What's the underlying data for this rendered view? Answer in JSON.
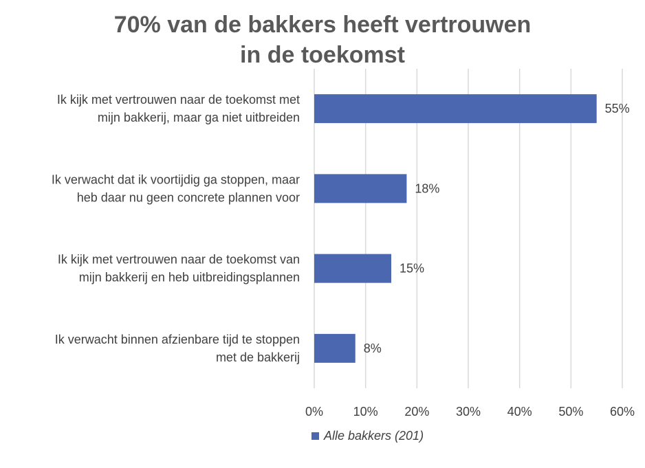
{
  "chart_data": {
    "type": "bar",
    "orientation": "horizontal",
    "title_lines": [
      "70% van de bakkers heeft vertrouwen",
      "in de toekomst"
    ],
    "categories": [
      [
        "Ik kijk met vertrouwen naar de toekomst met",
        "mijn bakkerij, maar ga niet uitbreiden"
      ],
      [
        "Ik verwacht dat ik voortijdig ga stoppen, maar",
        "heb daar nu geen concrete plannen voor"
      ],
      [
        "Ik kijk met vertrouwen naar de toekomst van",
        "mijn bakkerij en heb uitbreidingsplannen"
      ],
      [
        "Ik verwacht binnen afzienbare tijd te stoppen",
        "met de bakkerij"
      ]
    ],
    "series": [
      {
        "name": "Alle bakkers (201)",
        "values": [
          55,
          18,
          15,
          8
        ],
        "labels": [
          "55%",
          "18%",
          "15%",
          "8%"
        ]
      }
    ],
    "xlim": [
      0,
      60
    ],
    "xticks": [
      "0%",
      "10%",
      "20%",
      "30%",
      "40%",
      "50%",
      "60%"
    ],
    "grid": true,
    "legend_position": "bottom",
    "colors": {
      "bar": "#4a67b0",
      "grid": "#d9d9d9",
      "title": "#595959",
      "text": "#404040"
    }
  },
  "legend": {
    "label": "Alle bakkers (201)"
  }
}
